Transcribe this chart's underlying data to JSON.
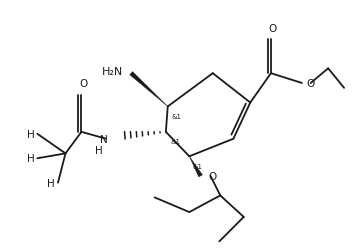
{
  "bg_color": "#ffffff",
  "line_color": "#1a1a1a",
  "line_width": 1.3,
  "font_size": 7.5,
  "fig_width": 3.58,
  "fig_height": 2.53,
  "dpi": 100,
  "xlim": [
    0,
    9.5
  ],
  "ylim": [
    0,
    7
  ]
}
